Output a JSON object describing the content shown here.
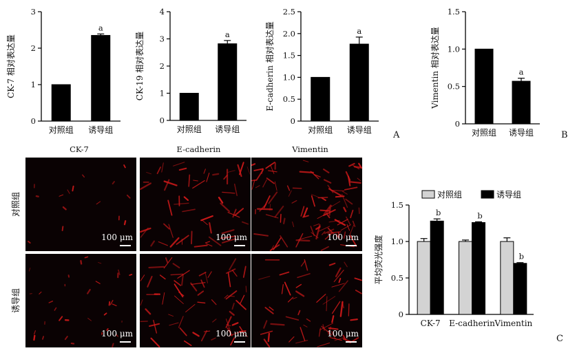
{
  "panel_letters": [
    "A",
    "B",
    "C"
  ],
  "micrograph": {
    "columns": [
      "CK-7",
      "E-cadherin",
      "Vimentin"
    ],
    "rows": [
      "对照组",
      "诱导组"
    ],
    "scale_label": "100 μm",
    "colors": {
      "background": "#0a0203",
      "stain": "#d21a1a"
    }
  },
  "chart_data": [
    {
      "type": "bar",
      "panel": "A",
      "ylabel": "CK-7 相对表达量",
      "categories": [
        "对照组",
        "诱导组"
      ],
      "values": [
        1.0,
        2.35
      ],
      "errors": [
        0,
        0.04
      ],
      "annotations": [
        "",
        "a"
      ],
      "ylim": [
        0,
        3
      ],
      "yticks": [
        0,
        1,
        2,
        3
      ],
      "color": "#000000"
    },
    {
      "type": "bar",
      "panel": "A",
      "ylabel": "CK-19 相对表达量",
      "categories": [
        "对照组",
        "诱导组"
      ],
      "values": [
        1.0,
        2.82
      ],
      "errors": [
        0,
        0.12
      ],
      "annotations": [
        "",
        "a"
      ],
      "ylim": [
        0,
        4
      ],
      "yticks": [
        0,
        1,
        2,
        3,
        4
      ],
      "color": "#000000"
    },
    {
      "type": "bar",
      "panel": "A",
      "ylabel": "E-cadherin 相对表达量",
      "categories": [
        "对照组",
        "诱导组"
      ],
      "values": [
        1.0,
        1.76
      ],
      "errors": [
        0,
        0.16
      ],
      "annotations": [
        "",
        "a"
      ],
      "ylim": [
        0,
        2.5
      ],
      "yticks": [
        "0",
        "0.5",
        "1.0",
        "1.5",
        "2.0",
        "2.5"
      ],
      "color": "#000000"
    },
    {
      "type": "bar",
      "panel": "B",
      "ylabel": "Vimentin 相对表达量",
      "categories": [
        "对照组",
        "诱导组"
      ],
      "values": [
        1.0,
        0.57
      ],
      "errors": [
        0,
        0.04
      ],
      "annotations": [
        "",
        "a"
      ],
      "ylim": [
        0,
        1.5
      ],
      "yticks": [
        "0",
        "0.5",
        "1.0",
        "1.5"
      ],
      "color": "#000000"
    },
    {
      "type": "bar",
      "panel": "C",
      "ylabel": "平均荧光强度",
      "categories": [
        "CK-7",
        "E-cadherin",
        "Vimentin"
      ],
      "series": [
        {
          "name": "对照组",
          "values": [
            1.0,
            1.0,
            1.0
          ],
          "errors": [
            0.04,
            0.02,
            0.05
          ],
          "annotations": [
            "",
            "",
            ""
          ],
          "color": "#d3d3d3"
        },
        {
          "name": "诱导组",
          "values": [
            1.28,
            1.26,
            0.7
          ],
          "errors": [
            0.03,
            0.01,
            0.01
          ],
          "annotations": [
            "b",
            "b",
            "b"
          ],
          "color": "#000000"
        }
      ],
      "ylim": [
        0,
        1.5
      ],
      "yticks": [
        "0",
        "0.5",
        "1.0",
        "1.5"
      ],
      "legend": "top"
    }
  ]
}
